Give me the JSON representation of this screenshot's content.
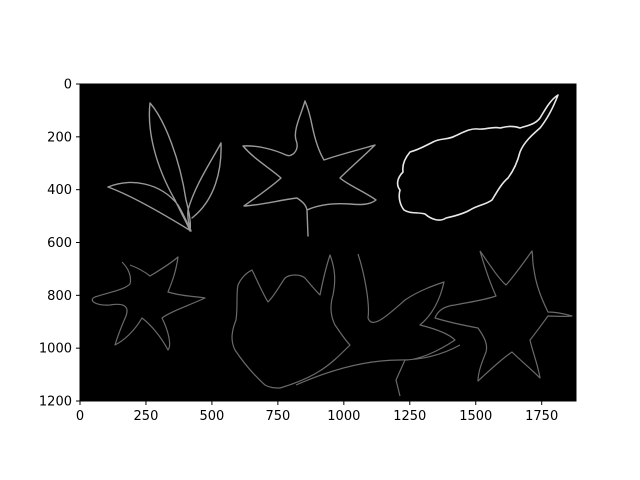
{
  "figure": {
    "type": "image",
    "subject": "edge-detected leaf outlines",
    "background_color": "#ffffff",
    "image_background_color": "#000000",
    "edge_color": "#b0b0b0"
  },
  "axes": {
    "xlim": [
      0,
      1880
    ],
    "ylim": [
      1200,
      0
    ],
    "x_ticks": [
      {
        "value": 0,
        "label": "0"
      },
      {
        "value": 250,
        "label": "250"
      },
      {
        "value": 500,
        "label": "500"
      },
      {
        "value": 750,
        "label": "750"
      },
      {
        "value": 1000,
        "label": "1000"
      },
      {
        "value": 1250,
        "label": "1250"
      },
      {
        "value": 1500,
        "label": "1500"
      },
      {
        "value": 1750,
        "label": "1750"
      }
    ],
    "y_ticks": [
      {
        "value": 0,
        "label": "0"
      },
      {
        "value": 200,
        "label": "200"
      },
      {
        "value": 400,
        "label": "400"
      },
      {
        "value": 600,
        "label": "600"
      },
      {
        "value": 800,
        "label": "800"
      },
      {
        "value": 1000,
        "label": "1000"
      },
      {
        "value": 1200,
        "label": "1200"
      }
    ]
  }
}
